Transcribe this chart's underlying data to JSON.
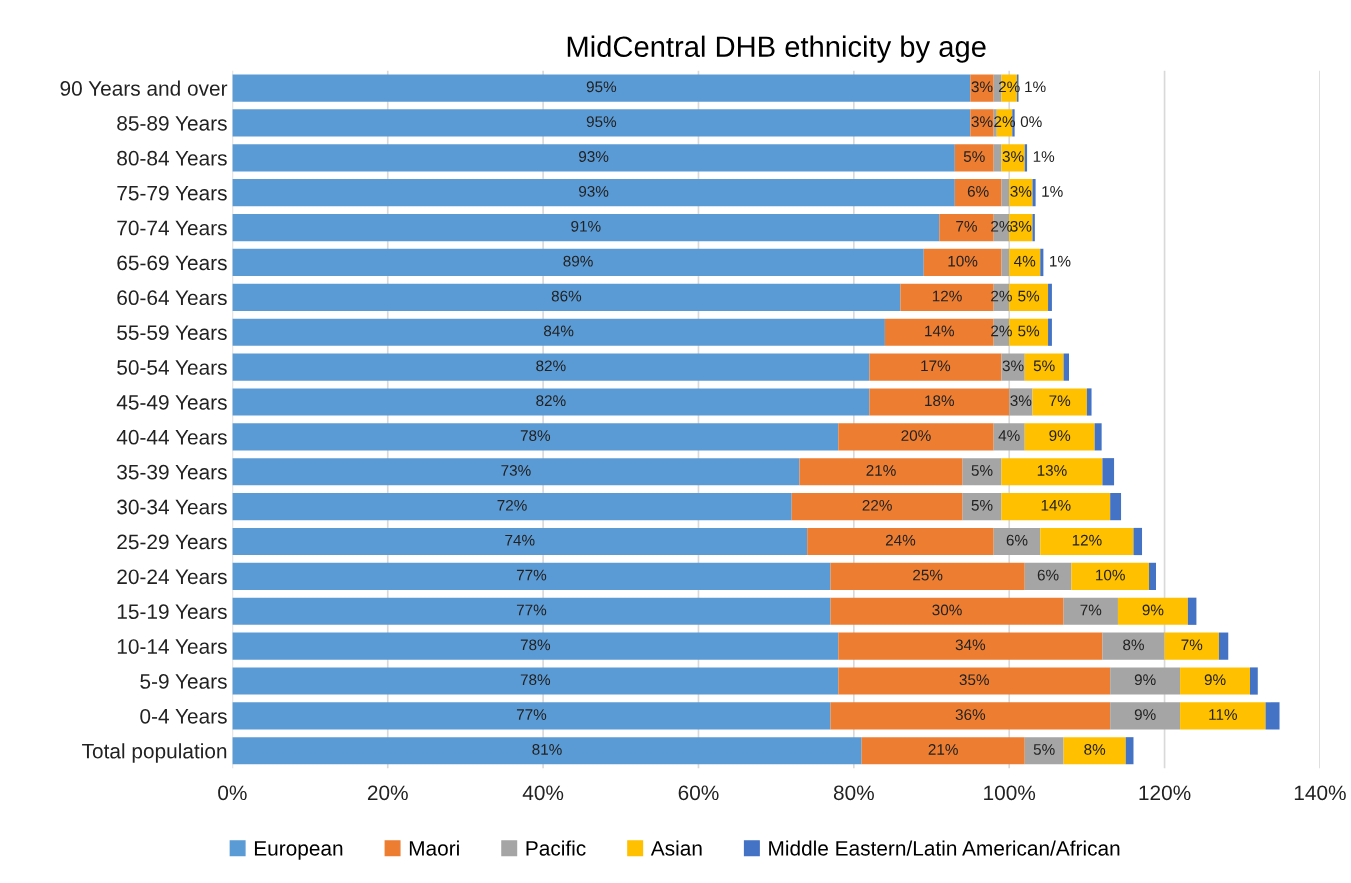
{
  "chart_data": {
    "type": "bar",
    "orientation": "horizontal",
    "stacked": true,
    "title": "MidCentral DHB ethnicity by age",
    "categories": [
      "90 Years and over",
      "85-89 Years",
      "80-84 Years",
      "75-79 Years",
      "70-74 Years",
      "65-69 Years",
      "60-64 Years",
      "55-59 Years",
      "50-54 Years",
      "45-49 Years",
      "40-44 Years",
      "35-39 Years",
      "30-34 Years",
      "25-29 Years",
      "20-24 Years",
      "15-19 Years",
      "10-14 Years",
      "5-9 Years",
      "0-4 Years",
      "Total population"
    ],
    "series": [
      {
        "name": "European",
        "color": "#5b9bd5",
        "values": [
          95,
          95,
          93,
          93,
          91,
          89,
          86,
          84,
          82,
          82,
          78,
          73,
          72,
          74,
          77,
          77,
          78,
          78,
          77,
          81
        ],
        "value_labels": [
          "95%",
          "95%",
          "93%",
          "93%",
          "91%",
          "89%",
          "86%",
          "84%",
          "82%",
          "82%",
          "78%",
          "73%",
          "72%",
          "74%",
          "77%",
          "77%",
          "78%",
          "78%",
          "77%",
          "81%"
        ]
      },
      {
        "name": "Maori",
        "color": "#ed7d31",
        "values": [
          3,
          3,
          5,
          6,
          7,
          10,
          12,
          14,
          17,
          18,
          20,
          21,
          22,
          24,
          25,
          30,
          34,
          35,
          36,
          21
        ],
        "value_labels": [
          "3%",
          "3%",
          "5%",
          "6%",
          "7%",
          "10%",
          "12%",
          "14%",
          "17%",
          "18%",
          "20%",
          "21%",
          "22%",
          "24%",
          "25%",
          "30%",
          "34%",
          "35%",
          "36%",
          "21%"
        ]
      },
      {
        "name": "Pacific",
        "color": "#a5a5a5",
        "values": [
          1,
          0.4,
          1,
          1,
          2,
          1,
          2,
          2,
          3,
          3,
          4,
          5,
          5,
          6,
          6,
          7,
          8,
          9,
          9,
          5
        ],
        "value_labels": [
          "1%",
          "0%",
          "1%",
          "1%",
          "2%",
          "1%",
          "2%",
          "2%",
          "3%",
          "3%",
          "4%",
          "5%",
          "5%",
          "6%",
          "6%",
          "7%",
          "8%",
          "9%",
          "9%",
          "5%"
        ]
      },
      {
        "name": "Asian",
        "color": "#ffc000",
        "values": [
          2,
          2,
          3,
          3,
          3,
          4,
          5,
          5,
          5,
          7,
          9,
          13,
          14,
          12,
          10,
          9,
          7,
          9,
          11,
          8
        ],
        "value_labels": [
          "2%",
          "2%",
          "3%",
          "3%",
          "3%",
          "4%",
          "5%",
          "5%",
          "5%",
          "7%",
          "9%",
          "13%",
          "14%",
          "12%",
          "10%",
          "9%",
          "7%",
          "9%",
          "11%",
          "8%"
        ]
      },
      {
        "name": "Middle Eastern/Latin American/African",
        "color": "#4472c4",
        "values": [
          0.2,
          0.3,
          0.3,
          0.4,
          0.3,
          0.4,
          0.5,
          0.5,
          0.7,
          0.6,
          0.9,
          1.5,
          1.4,
          1.1,
          0.9,
          1.1,
          1.2,
          1.0,
          1.8,
          1.0
        ]
      }
    ],
    "xlim": [
      0,
      140
    ],
    "xticks": [
      {
        "value": 0,
        "label": "0%"
      },
      {
        "value": 20,
        "label": "20%"
      },
      {
        "value": 40,
        "label": "40%"
      },
      {
        "value": 60,
        "label": "60%"
      },
      {
        "value": 80,
        "label": "80%"
      },
      {
        "value": 100,
        "label": "100%"
      },
      {
        "value": 120,
        "label": "120%"
      },
      {
        "value": 140,
        "label": "140%"
      }
    ],
    "grid": "x",
    "legend": "bottom"
  }
}
